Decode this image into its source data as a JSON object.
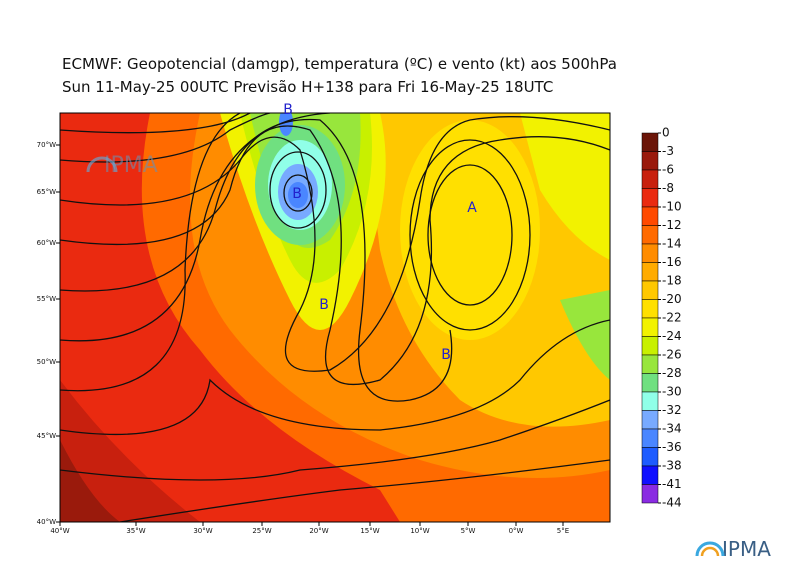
{
  "map": {
    "title": "ECMWF:  Geopotencial (damgp), temperatura (ºC) e vento (kt) aos 500hPa",
    "subtitle": "Sun 11-May-25 00UTC Previsão H+138 para Fri 16-May-25 18UTC",
    "logo": "IPMA",
    "lon_labels": [
      "40°W",
      "35°W",
      "30°W",
      "25°W",
      "20°W",
      "15°W",
      "10°W",
      "5°W",
      "0°W",
      "5°E"
    ],
    "lat_labels": [
      "70°W",
      "65°W",
      "60°W",
      "55°W",
      "50°W",
      "45°W",
      "40°W"
    ],
    "pressure_centers": [
      "B",
      "B",
      "B",
      "B",
      "A"
    ],
    "colorbar": {
      "ticks": [
        0,
        -3,
        -6,
        -8,
        -10,
        -12,
        -14,
        -16,
        -18,
        -20,
        -22,
        -24,
        -26,
        -28,
        -30,
        -32,
        -34,
        -36,
        -38,
        -41,
        -44
      ],
      "colors": [
        "#6b1508",
        "#9a1a0c",
        "#c8200e",
        "#ea2a10",
        "#ff4a00",
        "#ff6a00",
        "#ff8c00",
        "#ffab00",
        "#ffc800",
        "#ffe000",
        "#f2f200",
        "#c8f000",
        "#98e63c",
        "#70e080",
        "#90ffe8",
        "#78aaff",
        "#4a86ff",
        "#1e5cff",
        "#1010ff",
        "#8a2be2"
      ]
    }
  }
}
